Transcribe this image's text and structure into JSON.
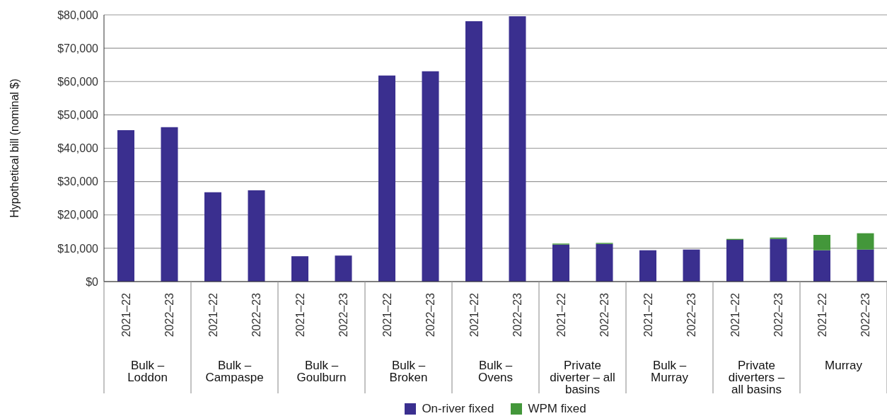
{
  "chart_data": {
    "type": "bar",
    "stacked": true,
    "ylabel": "Hypothetical bill (nominal $)",
    "categories": [
      "2021–22",
      "2022–23",
      "2021–22",
      "2022–23",
      "2021–22",
      "2022–23",
      "2021–22",
      "2022–23",
      "2021–22",
      "2022–23",
      "2021–22",
      "2022–23",
      "2021–22",
      "2022–23",
      "2021–22",
      "2022–23",
      "2021–22",
      "2022–23"
    ],
    "annotations": [
      "Bulk –\nLoddon",
      "Bulk –\nCampaspe",
      "Bulk –\nGoulburn",
      "Bulk –\nBroken",
      "Bulk –\nOvens",
      "Private\ndiverter – all\nbasins",
      "Bulk –\nMurray",
      "Private\ndiverters –\nall basins",
      "Murray"
    ],
    "series": [
      {
        "name": "On-river fixed",
        "color": "#3a2f8f",
        "values": [
          45400,
          46300,
          26800,
          27400,
          7600,
          7800,
          61800,
          63100,
          78100,
          79600,
          11100,
          11300,
          9400,
          9600,
          12500,
          12800,
          9400,
          9600
        ]
      },
      {
        "name": "WPM fixed",
        "color": "#43973a",
        "values": [
          null,
          null,
          null,
          null,
          null,
          null,
          null,
          null,
          null,
          null,
          300,
          300,
          null,
          null,
          300,
          400,
          4600,
          4900
        ]
      }
    ],
    "ylim": [
      0,
      80000
    ],
    "yticks": [
      {
        "value": 0,
        "label": "$0"
      },
      {
        "value": 10000,
        "label": "$10,000"
      },
      {
        "value": 20000,
        "label": "$20,000"
      },
      {
        "value": 30000,
        "label": "$30,000"
      },
      {
        "value": 40000,
        "label": "$40,000"
      },
      {
        "value": 50000,
        "label": "$50,000"
      },
      {
        "value": 60000,
        "label": "$60,000"
      },
      {
        "value": 70000,
        "label": "$70,000"
      },
      {
        "value": 80000,
        "label": "$80,000"
      }
    ],
    "grid": "y",
    "legend": "bottom"
  }
}
